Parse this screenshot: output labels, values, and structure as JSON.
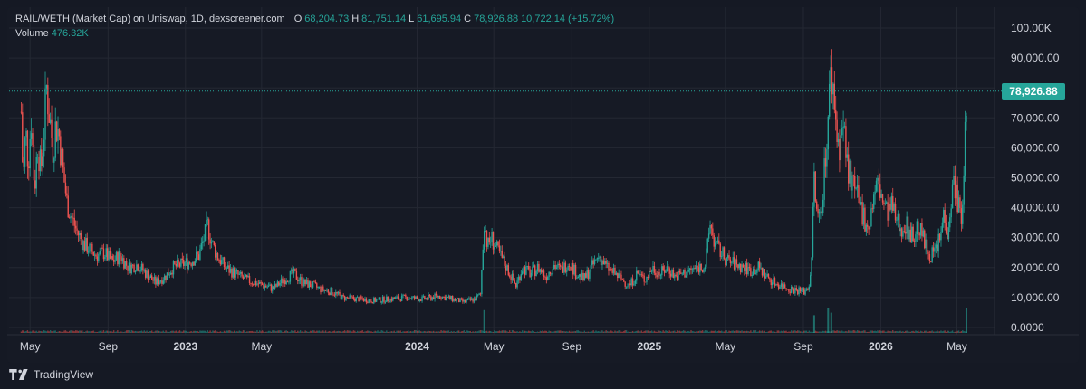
{
  "legend": {
    "symbol": "RAIL/WETH (Market Cap) on Uniswap, 1D, dexscreener.com",
    "o_label": "O",
    "o_value": "68,204.73",
    "h_label": "H",
    "h_value": "81,751.14",
    "l_label": "L",
    "l_value": "61,695.94",
    "c_label": "C",
    "c_value": "78,926.88",
    "change": "10,722.14 (+15.72%)",
    "volume_label": "Volume",
    "volume_value": "476.32K"
  },
  "last_price_label": "78,926.88",
  "footer": {
    "brand": "TradingView"
  },
  "colors": {
    "up": "#26a69a",
    "down": "#ef5350",
    "background": "#161a25",
    "grid": "#242833",
    "text": "#d1d4dc"
  },
  "chart_data": {
    "type": "line",
    "title": "",
    "ylabel": "",
    "xlabel": "",
    "ylim": [
      0,
      100000
    ],
    "y_ticks": [
      0,
      10000,
      20000,
      30000,
      40000,
      50000,
      60000,
      70000,
      80000,
      90000,
      100000
    ],
    "y_tick_labels": [
      "0.0000",
      "10,000.00",
      "20,000.00",
      "30,000.00",
      "40,000.00",
      "50,000.00",
      "60,000.00",
      "70,000.00",
      "80,000.00",
      "90,000.00",
      "100.00K"
    ],
    "x_range": [
      "2022-04-15",
      "2026-06-15"
    ],
    "x_ticks": [
      {
        "date": "2022-05-01",
        "label": "May"
      },
      {
        "date": "2022-09-01",
        "label": "Sep"
      },
      {
        "date": "2023-01-01",
        "label": "2023"
      },
      {
        "date": "2023-05-01",
        "label": "May"
      },
      {
        "date": "2024-01-01",
        "label": "2024"
      },
      {
        "date": "2024-05-01",
        "label": "May"
      },
      {
        "date": "2024-09-01",
        "label": "Sep"
      },
      {
        "date": "2025-01-01",
        "label": "2025"
      },
      {
        "date": "2025-05-01",
        "label": "May"
      },
      {
        "date": "2025-09-01",
        "label": "Sep"
      },
      {
        "date": "2026-01-01",
        "label": "2026"
      },
      {
        "date": "2026-05-01",
        "label": "May"
      }
    ],
    "grid": true,
    "legend": "top-left",
    "last_value": 78926.88,
    "series": [
      {
        "values_type": "market_cap_close",
        "points": [
          [
            "2022-04-17",
            72000
          ],
          [
            "2022-04-20",
            48000
          ],
          [
            "2022-04-24",
            66000
          ],
          [
            "2022-04-28",
            55000
          ],
          [
            "2022-05-03",
            70000
          ],
          [
            "2022-05-08",
            46000
          ],
          [
            "2022-05-13",
            62000
          ],
          [
            "2022-05-18",
            52000
          ],
          [
            "2022-05-23",
            66000
          ],
          [
            "2022-05-27",
            80000
          ],
          [
            "2022-06-01",
            70000
          ],
          [
            "2022-06-06",
            60000
          ],
          [
            "2022-06-11",
            68000
          ],
          [
            "2022-06-16",
            64000
          ],
          [
            "2022-06-22",
            52000
          ],
          [
            "2022-06-28",
            42000
          ],
          [
            "2022-07-05",
            37000
          ],
          [
            "2022-07-14",
            32000
          ],
          [
            "2022-07-24",
            28000
          ],
          [
            "2022-08-03",
            26000
          ],
          [
            "2022-08-14",
            24000
          ],
          [
            "2022-08-26",
            25000
          ],
          [
            "2022-09-07",
            22000
          ],
          [
            "2022-09-20",
            24000
          ],
          [
            "2022-10-03",
            20000
          ],
          [
            "2022-10-17",
            21000
          ],
          [
            "2022-10-31",
            18000
          ],
          [
            "2022-11-15",
            15000
          ],
          [
            "2022-11-30",
            17000
          ],
          [
            "2022-12-12",
            20000
          ],
          [
            "2022-12-25",
            21000
          ],
          [
            "2023-01-08",
            22000
          ],
          [
            "2023-01-22",
            24000
          ],
          [
            "2023-02-05",
            34000
          ],
          [
            "2023-02-12",
            28000
          ],
          [
            "2023-02-20",
            24000
          ],
          [
            "2023-03-05",
            20000
          ],
          [
            "2023-03-20",
            18000
          ],
          [
            "2023-04-05",
            16000
          ],
          [
            "2023-04-20",
            15000
          ],
          [
            "2023-05-05",
            14000
          ],
          [
            "2023-05-20",
            13000
          ],
          [
            "2023-06-05",
            16000
          ],
          [
            "2023-06-20",
            18000
          ],
          [
            "2023-07-05",
            15000
          ],
          [
            "2023-07-20",
            14000
          ],
          [
            "2023-08-05",
            12500
          ],
          [
            "2023-08-20",
            12000
          ],
          [
            "2023-09-05",
            10000
          ],
          [
            "2023-10-01",
            9500
          ],
          [
            "2023-10-25",
            9000
          ],
          [
            "2023-11-20",
            9500
          ],
          [
            "2023-12-15",
            10000
          ],
          [
            "2024-01-10",
            9500
          ],
          [
            "2024-02-05",
            10500
          ],
          [
            "2024-02-25",
            9500
          ],
          [
            "2024-03-15",
            8500
          ],
          [
            "2024-04-01",
            9500
          ],
          [
            "2024-04-10",
            11000
          ],
          [
            "2024-04-16",
            36000
          ],
          [
            "2024-04-21",
            27000
          ],
          [
            "2024-04-27",
            30000
          ],
          [
            "2024-05-06",
            26000
          ],
          [
            "2024-05-16",
            22000
          ],
          [
            "2024-05-26",
            18000
          ],
          [
            "2024-06-05",
            14000
          ],
          [
            "2024-06-15",
            20000
          ],
          [
            "2024-06-28",
            18000
          ],
          [
            "2024-07-10",
            20000
          ],
          [
            "2024-07-22",
            17000
          ],
          [
            "2024-08-03",
            21000
          ],
          [
            "2024-08-15",
            19000
          ],
          [
            "2024-08-27",
            22000
          ],
          [
            "2024-09-08",
            18000
          ],
          [
            "2024-09-20",
            16000
          ],
          [
            "2024-10-02",
            20000
          ],
          [
            "2024-10-14",
            24000
          ],
          [
            "2024-10-26",
            20000
          ],
          [
            "2024-11-07",
            18000
          ],
          [
            "2024-11-19",
            16000
          ],
          [
            "2024-12-01",
            14000
          ],
          [
            "2024-12-13",
            18000
          ],
          [
            "2024-12-25",
            16000
          ],
          [
            "2025-01-06",
            20000
          ],
          [
            "2025-01-18",
            18000
          ],
          [
            "2025-01-30",
            20000
          ],
          [
            "2025-02-11",
            17000
          ],
          [
            "2025-02-23",
            18000
          ],
          [
            "2025-03-07",
            19000
          ],
          [
            "2025-03-19",
            20000
          ],
          [
            "2025-03-31",
            21000
          ],
          [
            "2025-04-07",
            35000
          ],
          [
            "2025-04-14",
            28000
          ],
          [
            "2025-04-24",
            25000
          ],
          [
            "2025-05-06",
            22000
          ],
          [
            "2025-05-18",
            21000
          ],
          [
            "2025-05-30",
            20000
          ],
          [
            "2025-06-11",
            19000
          ],
          [
            "2025-06-23",
            20000
          ],
          [
            "2025-07-05",
            17000
          ],
          [
            "2025-07-17",
            15000
          ],
          [
            "2025-07-29",
            14000
          ],
          [
            "2025-08-10",
            13000
          ],
          [
            "2025-08-22",
            12500
          ],
          [
            "2025-09-03",
            12000
          ],
          [
            "2025-09-10",
            14000
          ],
          [
            "2025-09-14",
            24000
          ],
          [
            "2025-09-18",
            50000
          ],
          [
            "2025-09-23",
            35000
          ],
          [
            "2025-09-29",
            40000
          ],
          [
            "2025-10-05",
            55000
          ],
          [
            "2025-10-10",
            70000
          ],
          [
            "2025-10-15",
            86000
          ],
          [
            "2025-10-20",
            75000
          ],
          [
            "2025-10-26",
            60000
          ],
          [
            "2025-11-02",
            68000
          ],
          [
            "2025-11-09",
            55000
          ],
          [
            "2025-11-16",
            48000
          ],
          [
            "2025-11-23",
            44000
          ],
          [
            "2025-11-30",
            40000
          ],
          [
            "2025-12-07",
            36000
          ],
          [
            "2025-12-14",
            34000
          ],
          [
            "2025-12-21",
            44000
          ],
          [
            "2025-12-28",
            48000
          ],
          [
            "2026-01-04",
            42000
          ],
          [
            "2026-01-11",
            38000
          ],
          [
            "2026-01-18",
            40000
          ],
          [
            "2026-01-25",
            36000
          ],
          [
            "2026-02-01",
            33000
          ],
          [
            "2026-02-08",
            35000
          ],
          [
            "2026-02-15",
            32000
          ],
          [
            "2026-02-22",
            30000
          ],
          [
            "2026-03-01",
            34000
          ],
          [
            "2026-03-08",
            30000
          ],
          [
            "2026-03-15",
            26000
          ],
          [
            "2026-03-22",
            24000
          ],
          [
            "2026-03-29",
            26000
          ],
          [
            "2026-04-05",
            30000
          ],
          [
            "2026-04-10",
            38000
          ],
          [
            "2026-04-16",
            33000
          ],
          [
            "2026-04-22",
            42000
          ],
          [
            "2026-04-27",
            50000
          ],
          [
            "2026-05-02",
            42000
          ],
          [
            "2026-05-07",
            36000
          ],
          [
            "2026-05-11",
            40000
          ],
          [
            "2026-05-14",
            68000
          ],
          [
            "2026-05-16",
            78926.88
          ]
        ]
      }
    ],
    "volume_spikes": [
      [
        "2024-04-16",
        0.9
      ],
      [
        "2025-09-18",
        0.7
      ],
      [
        "2025-10-10",
        1.0
      ],
      [
        "2025-10-15",
        0.8
      ],
      [
        "2026-05-16",
        1.0
      ]
    ]
  }
}
